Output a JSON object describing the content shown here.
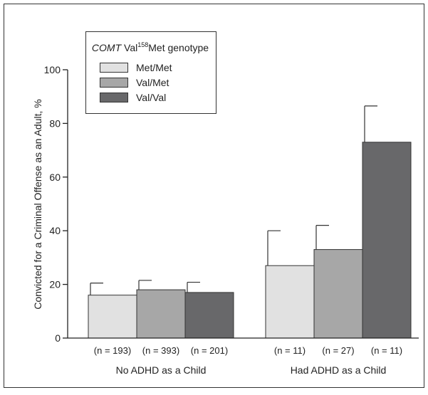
{
  "chart_data": {
    "type": "bar",
    "title": "",
    "ylabel": "Convicted for a Criminal Offense as an Adult, %",
    "ylim": [
      0,
      100
    ],
    "yticks": [
      0,
      20,
      40,
      60,
      80,
      100
    ],
    "grid": false,
    "legend": {
      "title_italic": "COMT",
      "title_rest": " Val",
      "title_sup": "158",
      "title_end": "Met genotype",
      "position": "top-left"
    },
    "groups": [
      {
        "label": "No ADHD as a Child",
        "bars": [
          {
            "series": "Met/Met",
            "value": 16,
            "error": 4.5,
            "n_label": "(n = 193)"
          },
          {
            "series": "Val/Met",
            "value": 18,
            "error": 3.5,
            "n_label": "(n = 393)"
          },
          {
            "series": "Val/Val",
            "value": 17,
            "error": 3.8,
            "n_label": "(n = 201)"
          }
        ]
      },
      {
        "label": "Had ADHD as a Child",
        "bars": [
          {
            "series": "Met/Met",
            "value": 27,
            "error": 13,
            "n_label": "(n = 11)"
          },
          {
            "series": "Val/Met",
            "value": 33,
            "error": 9,
            "n_label": "(n = 27)"
          },
          {
            "series": "Val/Val",
            "value": 73,
            "error": 13.5,
            "n_label": "(n = 11)"
          }
        ]
      }
    ],
    "series": [
      {
        "name": "Met/Met",
        "color": "#e1e1e1"
      },
      {
        "name": "Val/Met",
        "color": "#a7a7a7"
      },
      {
        "name": "Val/Val",
        "color": "#68686a"
      }
    ]
  }
}
